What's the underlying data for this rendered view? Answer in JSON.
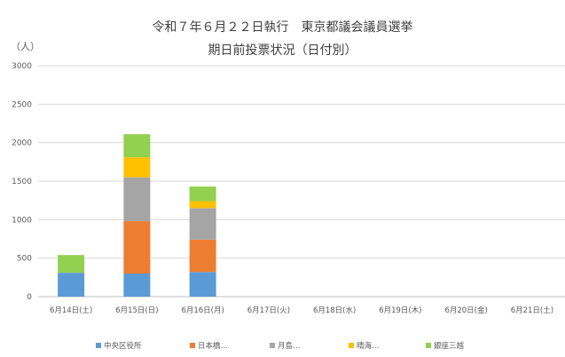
{
  "chart_data": {
    "type": "bar",
    "stacked": true,
    "title": "令和７年６月２２日執行　東京都議会議員選挙",
    "subtitle": "期日前投票状況（日付別）",
    "ylabel": "（人）",
    "xlabel": "",
    "ylim": [
      0,
      3000
    ],
    "yticks": [
      0,
      500,
      1000,
      1500,
      2000,
      2500,
      3000
    ],
    "grid": true,
    "legend_position": "bottom",
    "categories": [
      "6月14日(土)",
      "6月15日(日)",
      "6月16日(月)",
      "6月17日(火)",
      "6月18日(水)",
      "6月19日(木)",
      "6月20日(金)",
      "6月21日(土)"
    ],
    "series": [
      {
        "name": "中央区役所",
        "color": "#5b9bd5",
        "values": [
          310,
          300,
          320,
          0,
          0,
          0,
          0,
          0
        ]
      },
      {
        "name": "日本橋…",
        "color": "#ed7d31",
        "values": [
          0,
          680,
          420,
          0,
          0,
          0,
          0,
          0
        ]
      },
      {
        "name": "月島…",
        "color": "#a5a5a5",
        "values": [
          0,
          570,
          410,
          0,
          0,
          0,
          0,
          0
        ]
      },
      {
        "name": "晴海…",
        "color": "#ffc000",
        "values": [
          0,
          260,
          90,
          0,
          0,
          0,
          0,
          0
        ]
      },
      {
        "name": "銀座三越",
        "color": "#92d050",
        "values": [
          230,
          300,
          190,
          0,
          0,
          0,
          0,
          0
        ]
      }
    ]
  }
}
